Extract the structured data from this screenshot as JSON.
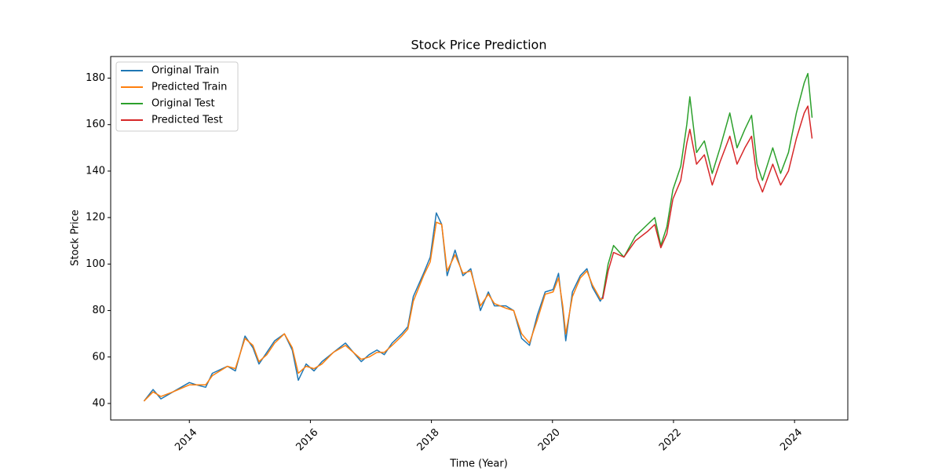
{
  "chart_data": {
    "type": "line",
    "title": "Stock Price Prediction",
    "x_label": "Time (Year)",
    "y_label": "Stock Price",
    "xlim": [
      2012.7,
      2024.88
    ],
    "ylim": [
      32.9,
      189.3
    ],
    "xticks": [
      2014,
      2016,
      2018,
      2020,
      2022,
      2024
    ],
    "yticks": [
      40,
      60,
      80,
      100,
      120,
      140,
      160,
      180
    ],
    "legend": "upper left",
    "series": [
      {
        "name": "Original Train",
        "color": "#1f77b4",
        "x": [
          2013.25,
          2013.4,
          2013.53,
          2013.73,
          2014.0,
          2014.12,
          2014.27,
          2014.38,
          2014.63,
          2014.76,
          2014.92,
          2015.05,
          2015.15,
          2015.28,
          2015.41,
          2015.57,
          2015.7,
          2015.8,
          2015.93,
          2016.06,
          2016.19,
          2016.38,
          2016.58,
          2016.84,
          2016.97,
          2017.1,
          2017.22,
          2017.35,
          2017.51,
          2017.61,
          2017.7,
          2017.87,
          2017.98,
          2018.08,
          2018.17,
          2018.26,
          2018.39,
          2018.52,
          2018.65,
          2018.81,
          2018.94,
          2019.04,
          2019.23,
          2019.36,
          2019.49,
          2019.62,
          2019.75,
          2019.88,
          2020.01,
          2020.1,
          2020.17,
          2020.22,
          2020.33,
          2020.46,
          2020.57,
          2020.66,
          2020.79,
          2020.83
        ],
        "values": [
          41,
          46,
          42,
          45,
          49,
          48,
          47,
          53,
          56,
          54,
          69,
          64,
          57,
          62,
          67,
          70,
          63,
          50,
          57,
          54,
          58,
          62,
          66,
          58,
          61,
          63,
          61,
          66,
          70,
          73,
          86,
          96,
          103,
          122,
          117,
          95,
          106,
          95,
          98,
          80,
          88,
          82,
          82,
          80,
          68,
          65,
          78,
          88,
          89,
          96,
          80,
          67,
          88,
          95,
          98,
          90,
          84,
          86
        ]
      },
      {
        "name": "Predicted Train",
        "color": "#ff7f0e",
        "x": [
          2013.25,
          2013.4,
          2013.53,
          2013.73,
          2014.0,
          2014.12,
          2014.27,
          2014.38,
          2014.63,
          2014.76,
          2014.92,
          2015.05,
          2015.15,
          2015.28,
          2015.41,
          2015.57,
          2015.7,
          2015.8,
          2015.93,
          2016.06,
          2016.19,
          2016.38,
          2016.58,
          2016.84,
          2016.97,
          2017.1,
          2017.22,
          2017.35,
          2017.51,
          2017.61,
          2017.7,
          2017.87,
          2017.98,
          2018.08,
          2018.17,
          2018.26,
          2018.39,
          2018.52,
          2018.65,
          2018.81,
          2018.94,
          2019.04,
          2019.23,
          2019.36,
          2019.49,
          2019.62,
          2019.75,
          2019.88,
          2020.01,
          2020.1,
          2020.17,
          2020.22,
          2020.33,
          2020.46,
          2020.57,
          2020.66,
          2020.79,
          2020.83
        ],
        "values": [
          41,
          45,
          43,
          45,
          48,
          48,
          48,
          52,
          56,
          55,
          68,
          65,
          58,
          61,
          66,
          70,
          64,
          53,
          56,
          55,
          57,
          62,
          65,
          59,
          60,
          62,
          62,
          65,
          69,
          72,
          84,
          95,
          101,
          118,
          117,
          97,
          104,
          96,
          97,
          82,
          87,
          83,
          81,
          80,
          70,
          66,
          76,
          87,
          88,
          94,
          82,
          70,
          86,
          94,
          97,
          91,
          85,
          85
        ]
      },
      {
        "name": "Original Test",
        "color": "#2ca02c",
        "x": [
          2020.83,
          2020.92,
          2021.01,
          2021.18,
          2021.37,
          2021.57,
          2021.69,
          2021.79,
          2021.89,
          2021.99,
          2022.12,
          2022.22,
          2022.27,
          2022.38,
          2022.51,
          2022.64,
          2022.77,
          2022.93,
          2023.05,
          2023.18,
          2023.29,
          2023.38,
          2023.47,
          2023.64,
          2023.77,
          2023.9,
          2024.03,
          2024.16,
          2024.22,
          2024.29
        ],
        "values": [
          86,
          100,
          108,
          103,
          112,
          117,
          120,
          108,
          116,
          132,
          142,
          160,
          172,
          148,
          153,
          139,
          150,
          165,
          150,
          158,
          164,
          143,
          136,
          150,
          139,
          148,
          165,
          178,
          182,
          163
        ]
      },
      {
        "name": "Predicted Test",
        "color": "#d62728",
        "x": [
          2020.83,
          2020.92,
          2021.01,
          2021.18,
          2021.37,
          2021.57,
          2021.69,
          2021.79,
          2021.89,
          2021.99,
          2022.12,
          2022.22,
          2022.27,
          2022.38,
          2022.51,
          2022.64,
          2022.77,
          2022.93,
          2023.05,
          2023.18,
          2023.29,
          2023.38,
          2023.47,
          2023.64,
          2023.77,
          2023.9,
          2024.03,
          2024.16,
          2024.22,
          2024.29
        ],
        "values": [
          85,
          97,
          105,
          103,
          110,
          114,
          117,
          107,
          113,
          128,
          136,
          152,
          158,
          143,
          147,
          134,
          144,
          155,
          143,
          150,
          155,
          137,
          131,
          143,
          134,
          140,
          154,
          165,
          168,
          154
        ]
      }
    ]
  }
}
